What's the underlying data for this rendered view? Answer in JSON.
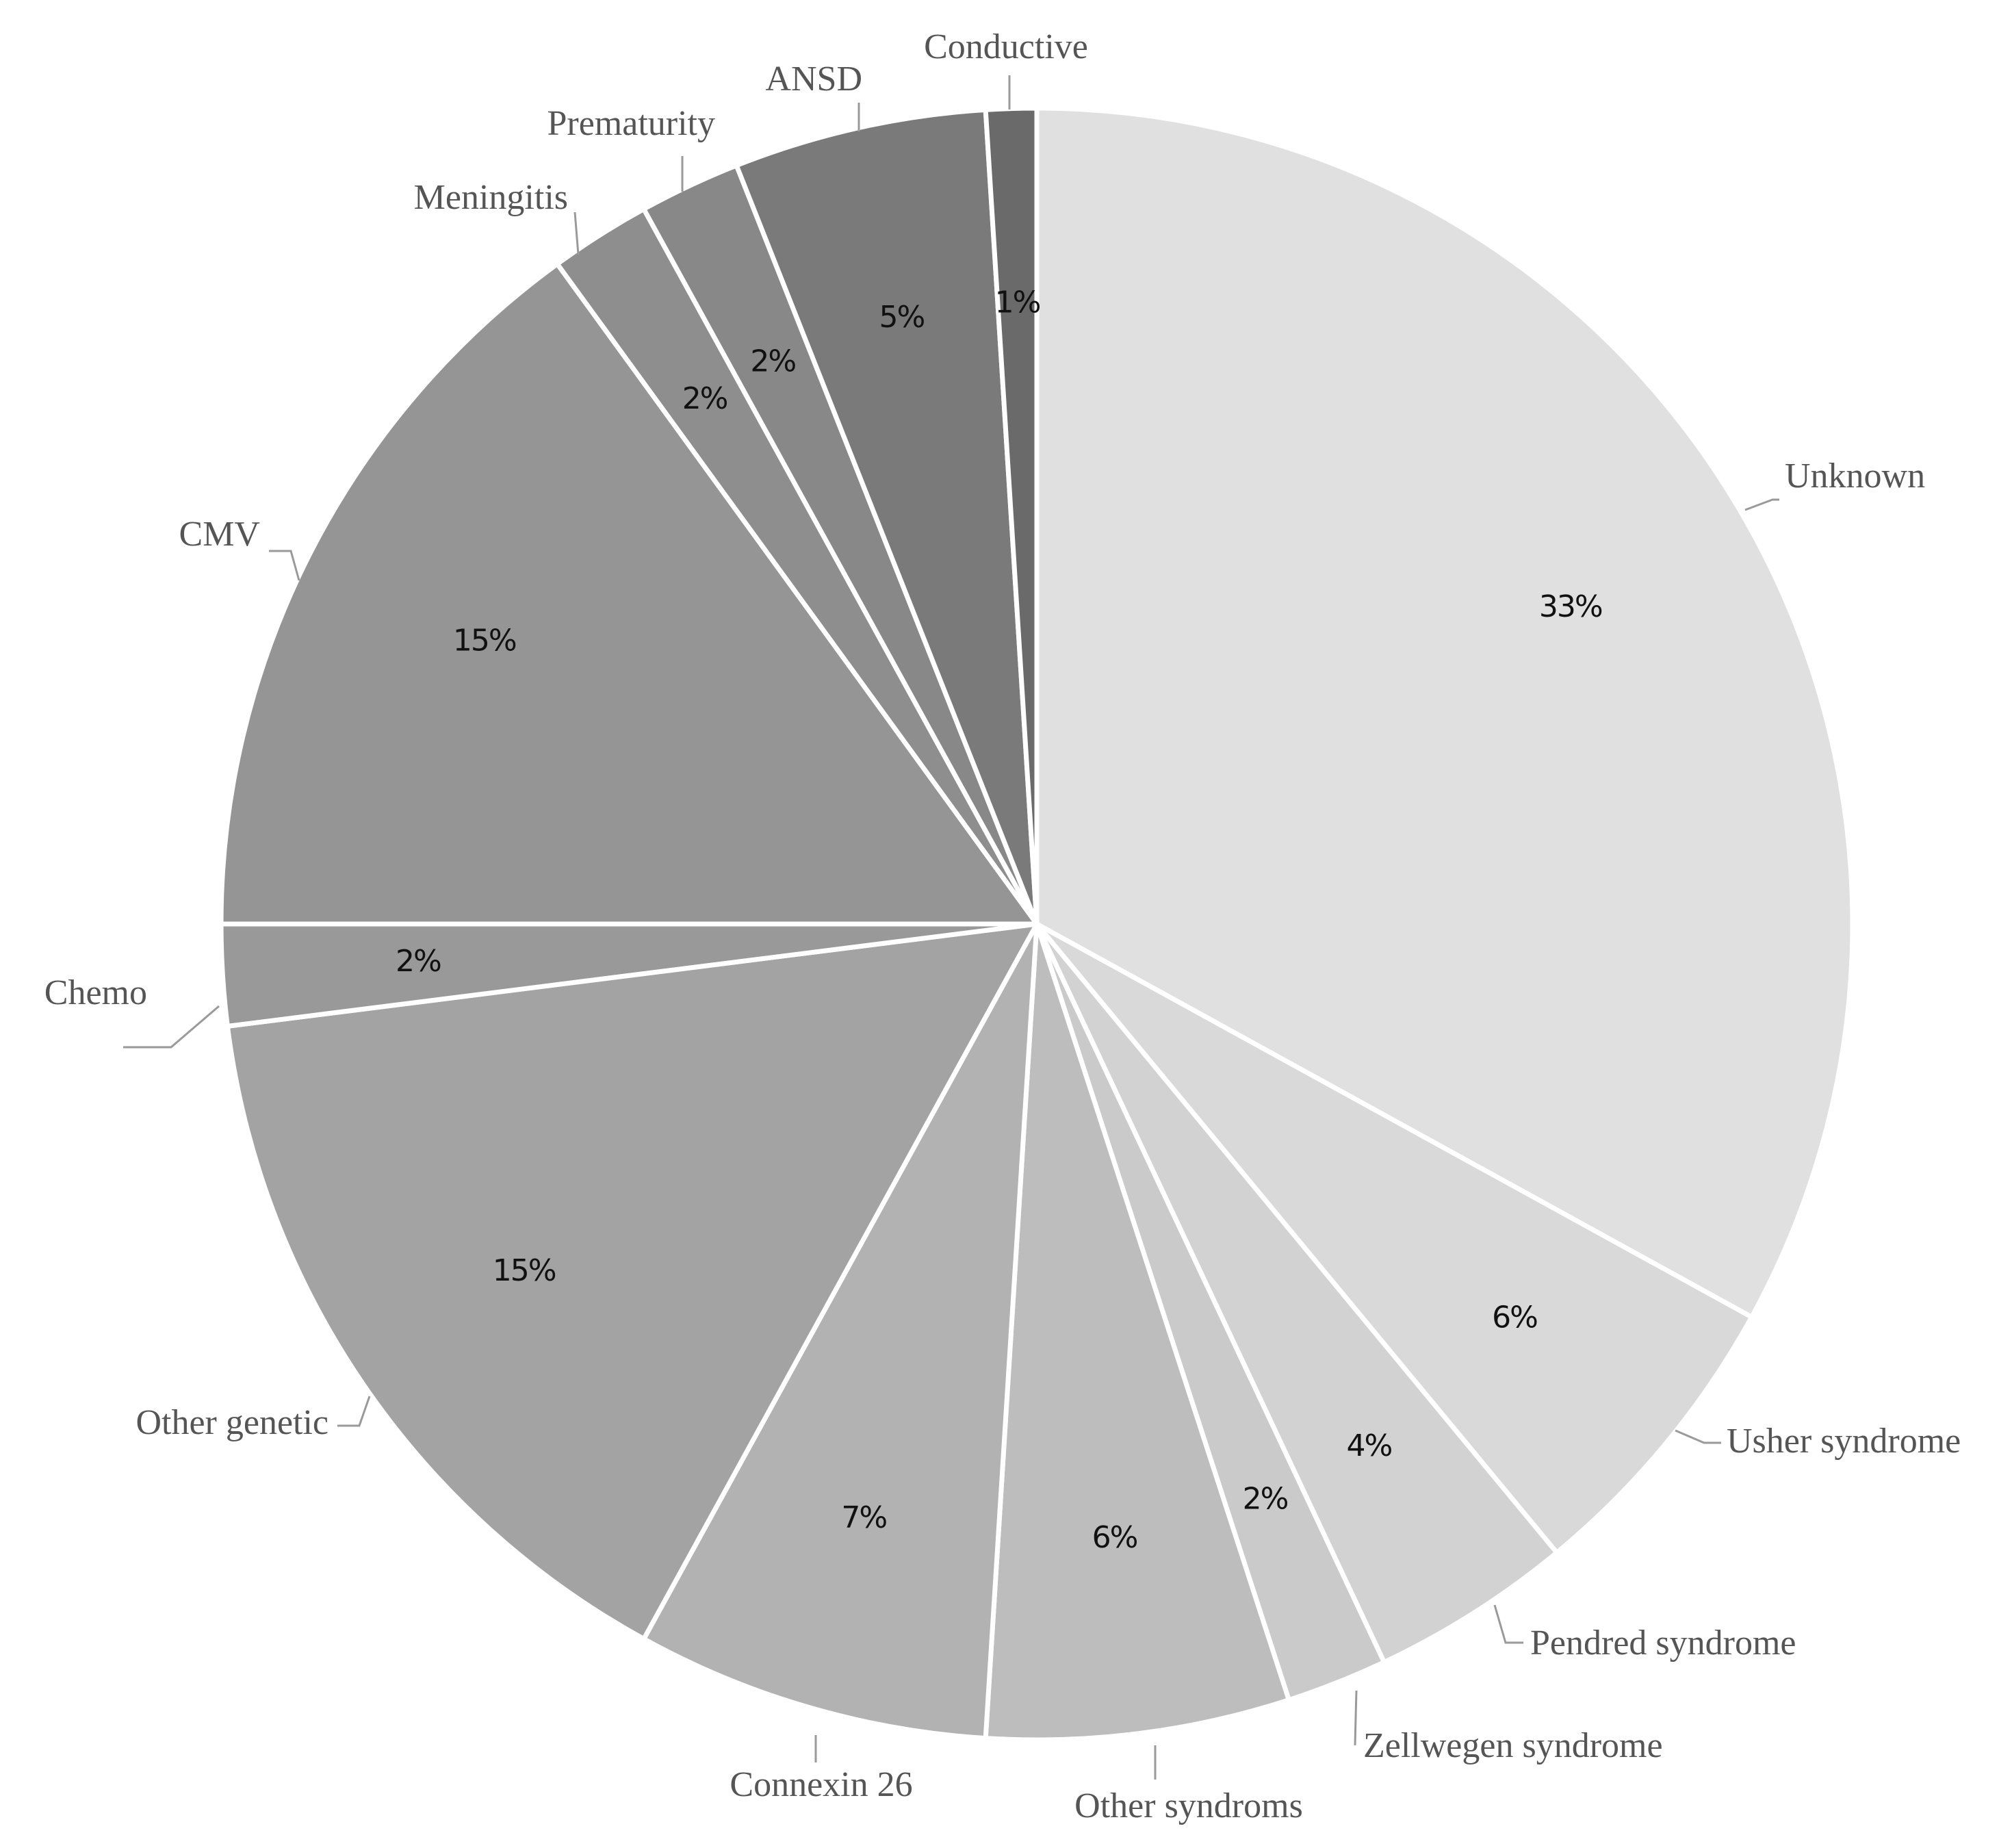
{
  "chart_data": {
    "type": "pie",
    "start": "12 o'clock",
    "direction": "clockwise",
    "slices": [
      {
        "label": "Unknown",
        "value": 33,
        "display": "33%",
        "color": "#e0e0e0"
      },
      {
        "label": "Usher syndrome",
        "value": 6,
        "display": "6%",
        "color": "#d9d9d9"
      },
      {
        "label": "Pendred syndrome",
        "value": 4,
        "display": "4%",
        "color": "#d2d2d2"
      },
      {
        "label": "Zellwegen syndrome",
        "value": 2,
        "display": "2%",
        "color": "#cacaca"
      },
      {
        "label": "Other syndroms",
        "value": 6,
        "display": "6%",
        "color": "#bdbdbd"
      },
      {
        "label": "Connexin 26",
        "value": 7,
        "display": "7%",
        "color": "#b2b2b2"
      },
      {
        "label": "Other genetic",
        "value": 15,
        "display": "15%",
        "color": "#a3a3a3"
      },
      {
        "label": "Chemo",
        "value": 2,
        "display": "2%",
        "color": "#999999"
      },
      {
        "label": "CMV",
        "value": 15,
        "display": "15%",
        "color": "#959595"
      },
      {
        "label": "Meningitis",
        "value": 2,
        "display": "2%",
        "color": "#8e8e8e"
      },
      {
        "label": "Prematurity",
        "value": 2,
        "display": "2%",
        "color": "#888888"
      },
      {
        "label": "ANSD",
        "value": 5,
        "display": "5%",
        "color": "#7a7a7a"
      },
      {
        "label": "Conductive",
        "value": 1,
        "display": "1%",
        "color": "#6a6a6a"
      }
    ]
  }
}
